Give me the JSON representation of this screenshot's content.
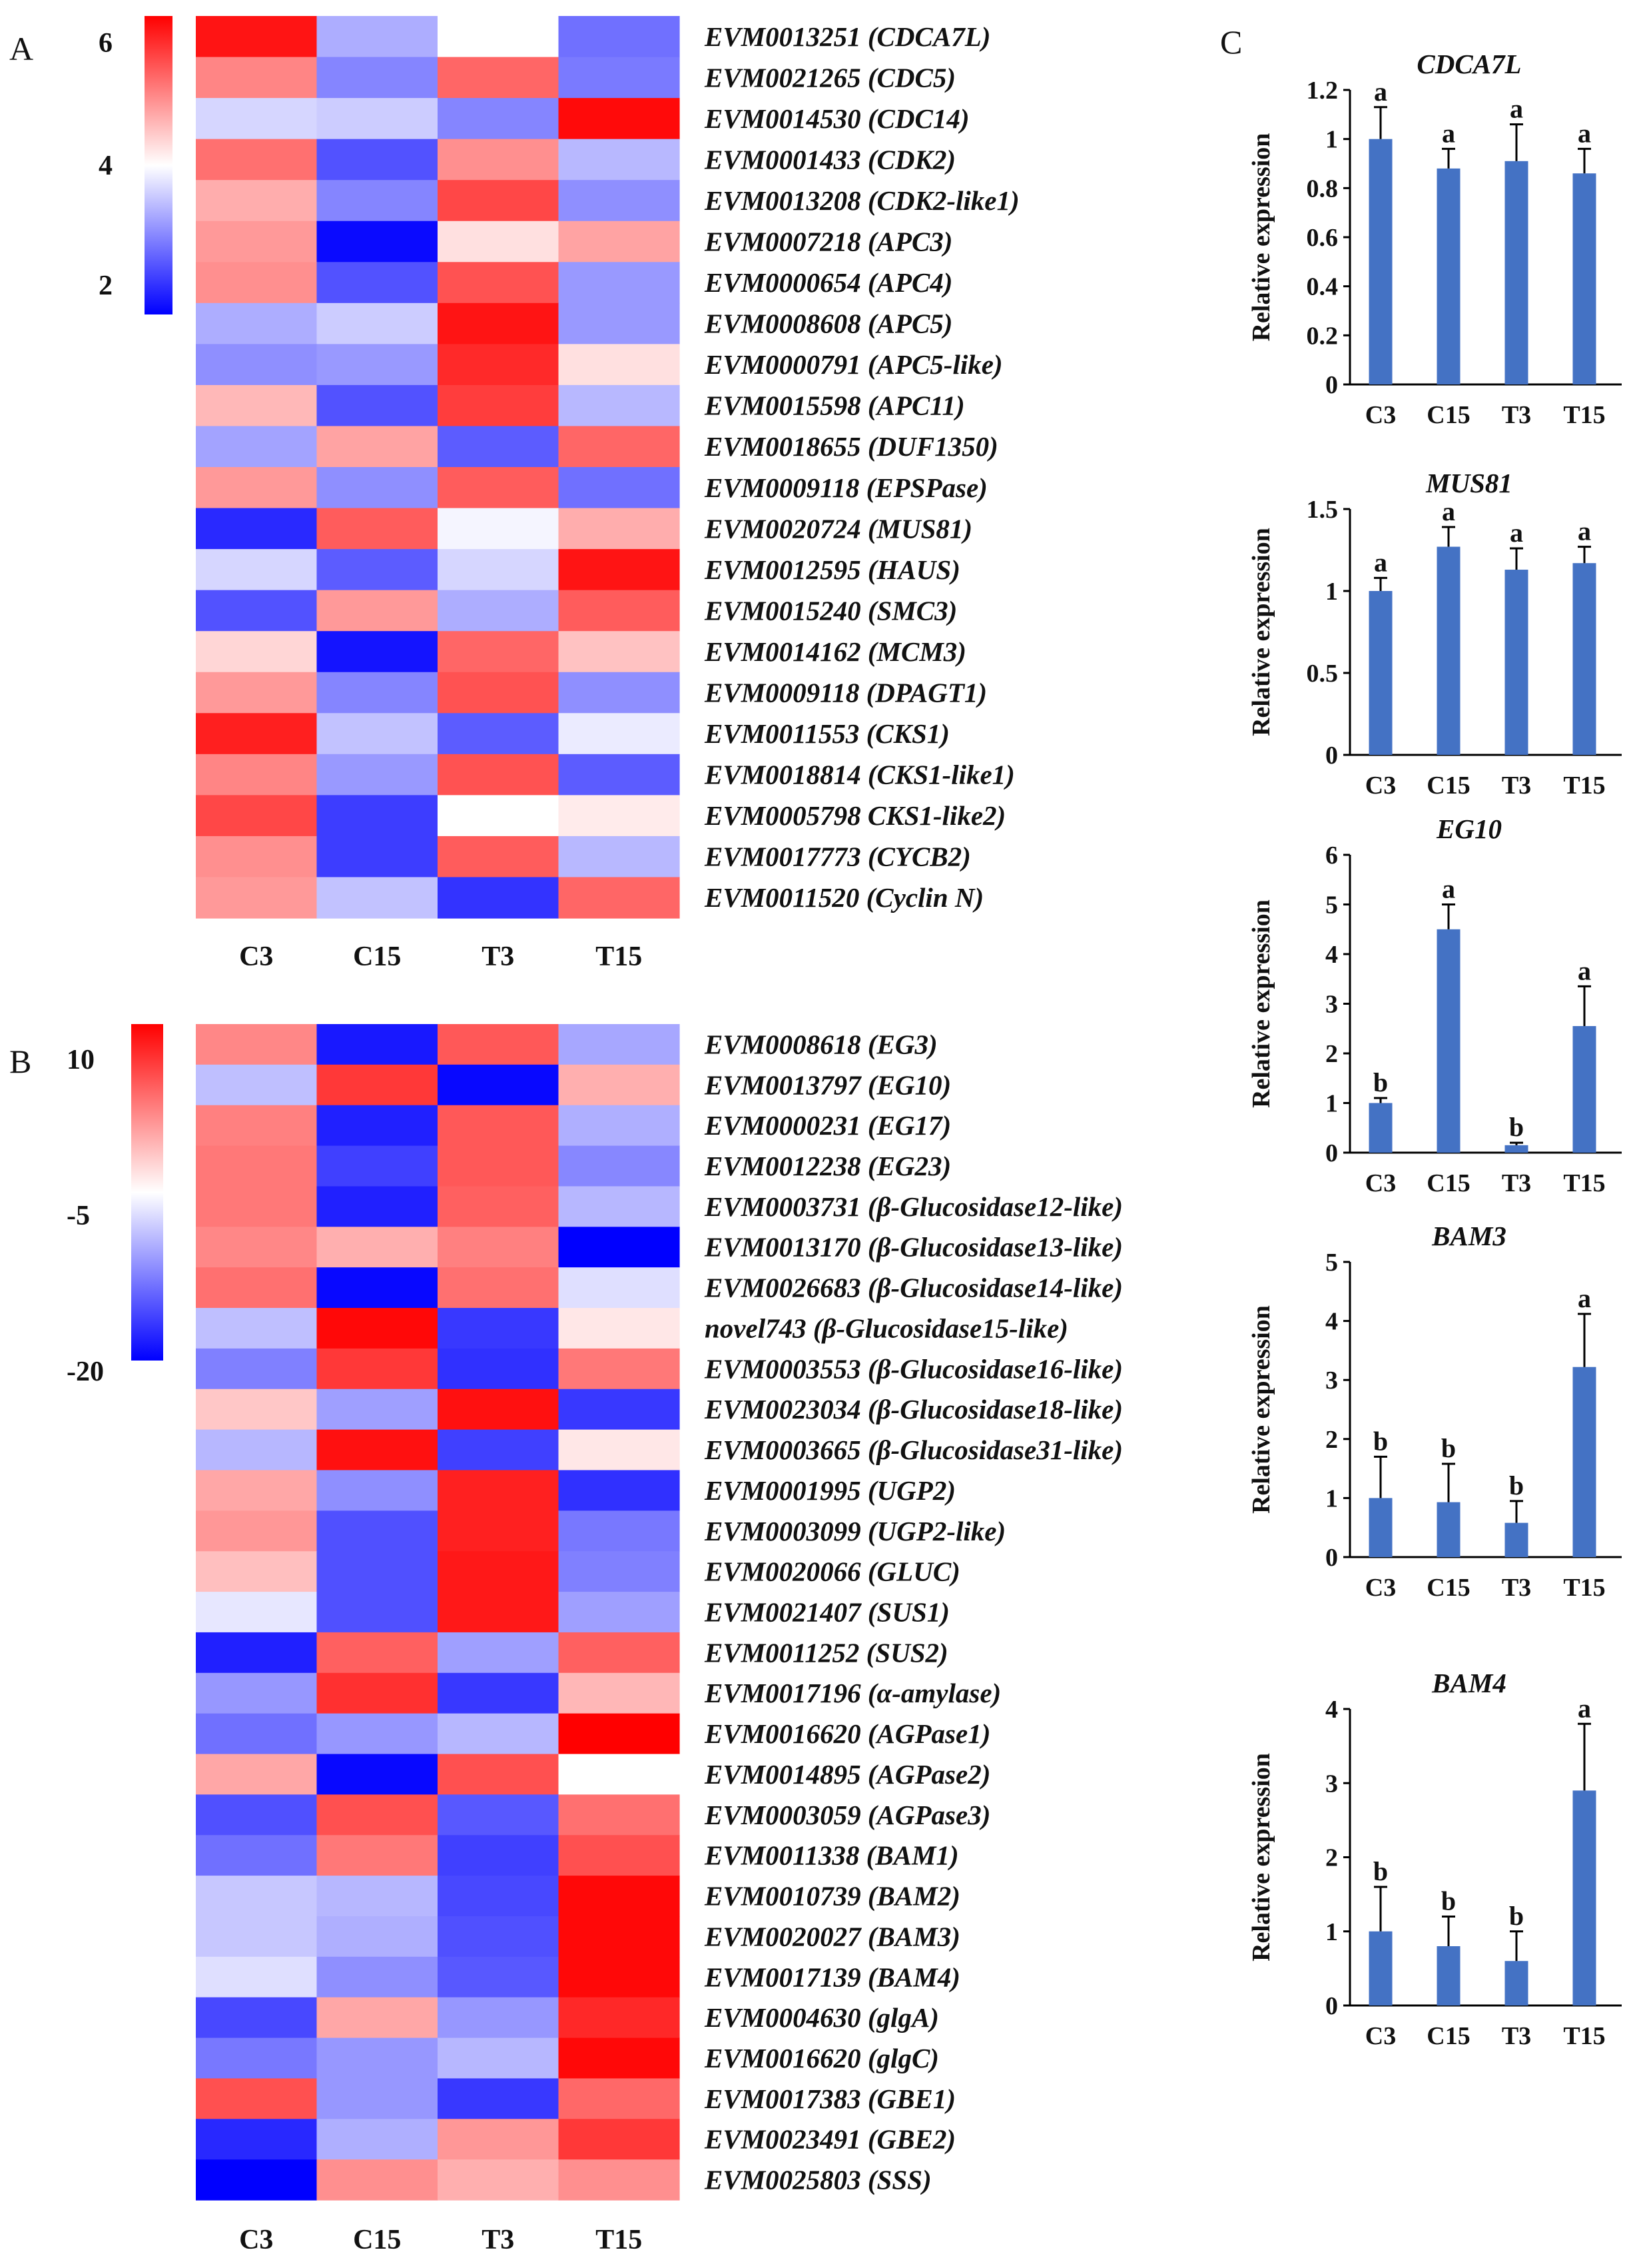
{
  "chart_data": [
    {
      "type": "heatmap",
      "panel": "A",
      "columns": [
        "C3",
        "C15",
        "T3",
        "T15"
      ],
      "scale": {
        "ticks": [
          "6",
          "4",
          "2"
        ],
        "min": 1.5,
        "max": 6.5
      },
      "rows": [
        {
          "label": "EVM0013251 (CDCA7L)",
          "values": [
            6.3,
            3.2,
            4.0,
            2.6
          ]
        },
        {
          "label": "EVM0021265 (CDC5)",
          "values": [
            5.2,
            2.8,
            5.5,
            2.7
          ]
        },
        {
          "label": "EVM0014530 (CDC14)",
          "values": [
            3.6,
            3.5,
            2.8,
            6.4
          ]
        },
        {
          "label": "EVM0001433 (CDK2)",
          "values": [
            5.4,
            2.3,
            5.1,
            3.3
          ]
        },
        {
          "label": "EVM0013208 (CDK2-like1)",
          "values": [
            4.8,
            2.8,
            5.8,
            2.9
          ]
        },
        {
          "label": "EVM0007218 (APC3)",
          "values": [
            5.0,
            1.6,
            4.3,
            4.9
          ]
        },
        {
          "label": "EVM0000654 (APC4)",
          "values": [
            5.1,
            2.3,
            5.7,
            3.0
          ]
        },
        {
          "label": "EVM0008608 (APC5)",
          "values": [
            3.2,
            3.5,
            6.3,
            3.0
          ]
        },
        {
          "label": "EVM0000791 (APC5-like)",
          "values": [
            2.9,
            3.0,
            6.1,
            4.3
          ]
        },
        {
          "label": "EVM0015598 (APC11)",
          "values": [
            4.7,
            2.3,
            5.9,
            3.3
          ]
        },
        {
          "label": "EVM0018655 (DUF1350)",
          "values": [
            3.1,
            4.9,
            2.4,
            5.5
          ]
        },
        {
          "label": "EVM0009118 (EPSPase)",
          "values": [
            5.0,
            2.9,
            5.6,
            2.6
          ]
        },
        {
          "label": "EVM0020724 (MUS81)",
          "values": [
            1.9,
            5.6,
            3.9,
            4.8
          ]
        },
        {
          "label": "EVM0012595 (HAUS)",
          "values": [
            3.6,
            2.4,
            3.6,
            6.3
          ]
        },
        {
          "label": "EVM0015240 (SMC3)",
          "values": [
            2.3,
            5.0,
            3.2,
            5.6
          ]
        },
        {
          "label": "EVM0014162 (MCM3)",
          "values": [
            4.4,
            1.7,
            5.5,
            4.6
          ]
        },
        {
          "label": "EVM0009118 (DPAGT1)",
          "values": [
            5.0,
            2.8,
            5.7,
            2.9
          ]
        },
        {
          "label": "EVM0011553 (CKS1)",
          "values": [
            6.2,
            3.4,
            2.4,
            3.8
          ]
        },
        {
          "label": "EVM0018814 (CKS1-like1)",
          "values": [
            5.2,
            3.0,
            5.7,
            2.4
          ]
        },
        {
          "label": "EVM0005798 CKS1-like2)",
          "values": [
            5.8,
            2.1,
            4.0,
            4.2
          ]
        },
        {
          "label": "EVM0017773 (CYCB2)",
          "values": [
            5.1,
            2.1,
            5.6,
            3.3
          ]
        },
        {
          "label": "EVM0011520 (Cyclin N)",
          "values": [
            5.0,
            3.4,
            2.0,
            5.5
          ]
        }
      ]
    },
    {
      "type": "heatmap",
      "panel": "B",
      "columns": [
        "C3",
        "C15",
        "T3",
        "T15"
      ],
      "scale": {
        "ticks": [
          "10",
          "-5",
          "-20"
        ],
        "min": -20,
        "max": 12
      },
      "rows": [
        {
          "label": "EVM0008618 (EG3)",
          "values": [
            3.5,
            -18.5,
            6.5,
            -9.5
          ]
        },
        {
          "label": "EVM0013797 (EG10)",
          "values": [
            -8.0,
            8.5,
            -19.5,
            1.0
          ]
        },
        {
          "label": "EVM0000231 (EG17)",
          "values": [
            4.0,
            -18.0,
            6.5,
            -9.0
          ]
        },
        {
          "label": "EVM0012238 (EG23)",
          "values": [
            4.5,
            -16.0,
            6.5,
            -11.5
          ]
        },
        {
          "label": "EVM0003731 (β-Glucosidase12-like)",
          "values": [
            4.5,
            -18.0,
            6.0,
            -8.5
          ]
        },
        {
          "label": "EVM0013170 (β-Glucosidase13-like)",
          "values": [
            3.5,
            1.0,
            4.0,
            -20.0
          ]
        },
        {
          "label": "EVM0026683 (β-Glucosidase14-like)",
          "values": [
            5.0,
            -19.5,
            5.0,
            -6.0
          ]
        },
        {
          "label": "novel743 (β-Glucosidase15-like)",
          "values": [
            -8.0,
            11.5,
            -16.5,
            -2.5
          ]
        },
        {
          "label": "EVM0003553 (β-Glucosidase16-like)",
          "values": [
            -12.0,
            8.5,
            -17.0,
            4.5
          ]
        },
        {
          "label": "EVM0023034 (β-Glucosidase18-like)",
          "values": [
            -0.5,
            -10.0,
            11.0,
            -16.5
          ]
        },
        {
          "label": "EVM0003665 (β-Glucosidase31-like)",
          "values": [
            -8.5,
            11.0,
            -16.0,
            -2.5
          ]
        },
        {
          "label": "EVM0001995 (UGP2)",
          "values": [
            1.5,
            -11.0,
            10.0,
            -17.0
          ]
        },
        {
          "label": "EVM0003099 (UGP2-like)",
          "values": [
            2.5,
            -15.0,
            10.0,
            -12.5
          ]
        },
        {
          "label": "EVM0020066 (GLUC)",
          "values": [
            0.0,
            -15.0,
            10.5,
            -12.0
          ]
        },
        {
          "label": "EVM0021407 (SUS1)",
          "values": [
            -5.5,
            -15.0,
            10.5,
            -10.0
          ]
        },
        {
          "label": "EVM0011252 (SUS2)",
          "values": [
            -18.0,
            6.0,
            -10.0,
            6.0
          ]
        },
        {
          "label": "EVM0017196 (α-amylase)",
          "values": [
            -10.5,
            9.0,
            -16.5,
            0.5
          ]
        },
        {
          "label": "EVM0016620 (AGPase1)",
          "values": [
            -13.0,
            -10.5,
            -8.5,
            12.0
          ]
        },
        {
          "label": "EVM0014895 (AGPase2)",
          "values": [
            1.5,
            -19.5,
            7.0,
            -4.0
          ]
        },
        {
          "label": "EVM0003059 (AGPase3)",
          "values": [
            -15.0,
            7.0,
            -14.5,
            5.0
          ]
        },
        {
          "label": "EVM0011338 (BAM1)",
          "values": [
            -13.0,
            4.5,
            -16.0,
            7.0
          ]
        },
        {
          "label": "EVM0010739 (BAM2)",
          "values": [
            -7.5,
            -8.5,
            -15.5,
            11.5
          ]
        },
        {
          "label": "EVM0020027 (BAM3)",
          "values": [
            -7.5,
            -9.0,
            -15.0,
            11.5
          ]
        },
        {
          "label": "EVM0017139 (BAM4)",
          "values": [
            -6.0,
            -11.0,
            -14.5,
            11.5
          ]
        },
        {
          "label": "EVM0004630 (glgA)",
          "values": [
            -15.5,
            1.5,
            -10.5,
            9.5
          ]
        },
        {
          "label": "EVM0016620 (glgC)",
          "values": [
            -12.5,
            -10.5,
            -8.5,
            11.5
          ]
        },
        {
          "label": "EVM0017383 (GBE1)",
          "values": [
            7.0,
            -10.5,
            -16.5,
            5.5
          ]
        },
        {
          "label": "EVM0023491 (GBE2)",
          "values": [
            -17.5,
            -9.0,
            2.5,
            8.5
          ]
        },
        {
          "label": "EVM0025803 (SSS)",
          "values": [
            -20.0,
            3.0,
            1.0,
            3.0
          ]
        }
      ]
    },
    {
      "type": "bar",
      "panel": "C",
      "title": "CDCA7L",
      "categories": [
        "C3",
        "C15",
        "T3",
        "T15"
      ],
      "values": [
        1.0,
        0.88,
        0.91,
        0.86
      ],
      "errors": [
        0.13,
        0.08,
        0.15,
        0.1
      ],
      "labels": [
        "a",
        "a",
        "a",
        "a"
      ],
      "ylabel": "Relative expression",
      "ylim": [
        0,
        1.2
      ],
      "yticks": [
        "0",
        "0.2",
        "0.4",
        "0.6",
        "0.8",
        "1",
        "1.2"
      ]
    },
    {
      "type": "bar",
      "panel": "C",
      "title": "MUS81",
      "categories": [
        "C3",
        "C15",
        "T3",
        "T15"
      ],
      "values": [
        1.0,
        1.27,
        1.13,
        1.17
      ],
      "errors": [
        0.08,
        0.12,
        0.13,
        0.1
      ],
      "labels": [
        "a",
        "a",
        "a",
        "a"
      ],
      "ylabel": "Relative expression",
      "ylim": [
        0,
        1.5
      ],
      "yticks": [
        "0",
        "0.5",
        "1",
        "1.5"
      ]
    },
    {
      "type": "bar",
      "panel": "C",
      "title": "EG10",
      "categories": [
        "C3",
        "C15",
        "T3",
        "T15"
      ],
      "values": [
        1.0,
        4.5,
        0.15,
        2.55
      ],
      "errors": [
        0.1,
        0.5,
        0.05,
        0.8
      ],
      "labels": [
        "b",
        "a",
        "b",
        "a"
      ],
      "ylabel": "Relative expression",
      "ylim": [
        0,
        6
      ],
      "yticks": [
        "0",
        "1",
        "2",
        "3",
        "4",
        "5",
        "6"
      ]
    },
    {
      "type": "bar",
      "panel": "C",
      "title": "BAM3",
      "categories": [
        "C3",
        "C15",
        "T3",
        "T15"
      ],
      "values": [
        1.0,
        0.93,
        0.58,
        3.22
      ],
      "errors": [
        0.7,
        0.65,
        0.37,
        0.9
      ],
      "labels": [
        "b",
        "b",
        "b",
        "a"
      ],
      "ylabel": "Relative expression",
      "ylim": [
        0,
        5
      ],
      "yticks": [
        "0",
        "1",
        "2",
        "3",
        "4",
        "5"
      ]
    },
    {
      "type": "bar",
      "panel": "C",
      "title": "BAM4",
      "categories": [
        "C3",
        "C15",
        "T3",
        "T15"
      ],
      "values": [
        1.0,
        0.8,
        0.6,
        2.9
      ],
      "errors": [
        0.6,
        0.4,
        0.4,
        0.9
      ],
      "labels": [
        "b",
        "b",
        "b",
        "a"
      ],
      "ylabel": "Relative expression",
      "ylim": [
        0,
        4
      ],
      "yticks": [
        "0",
        "1",
        "2",
        "3",
        "4"
      ]
    }
  ],
  "panels": {
    "a": "A",
    "b": "B",
    "c": "C"
  },
  "colors": {
    "low": "#0000ff",
    "mid": "#ffffff",
    "high": "#ff0000",
    "bar": "#4472c4",
    "axis": "#000000"
  }
}
